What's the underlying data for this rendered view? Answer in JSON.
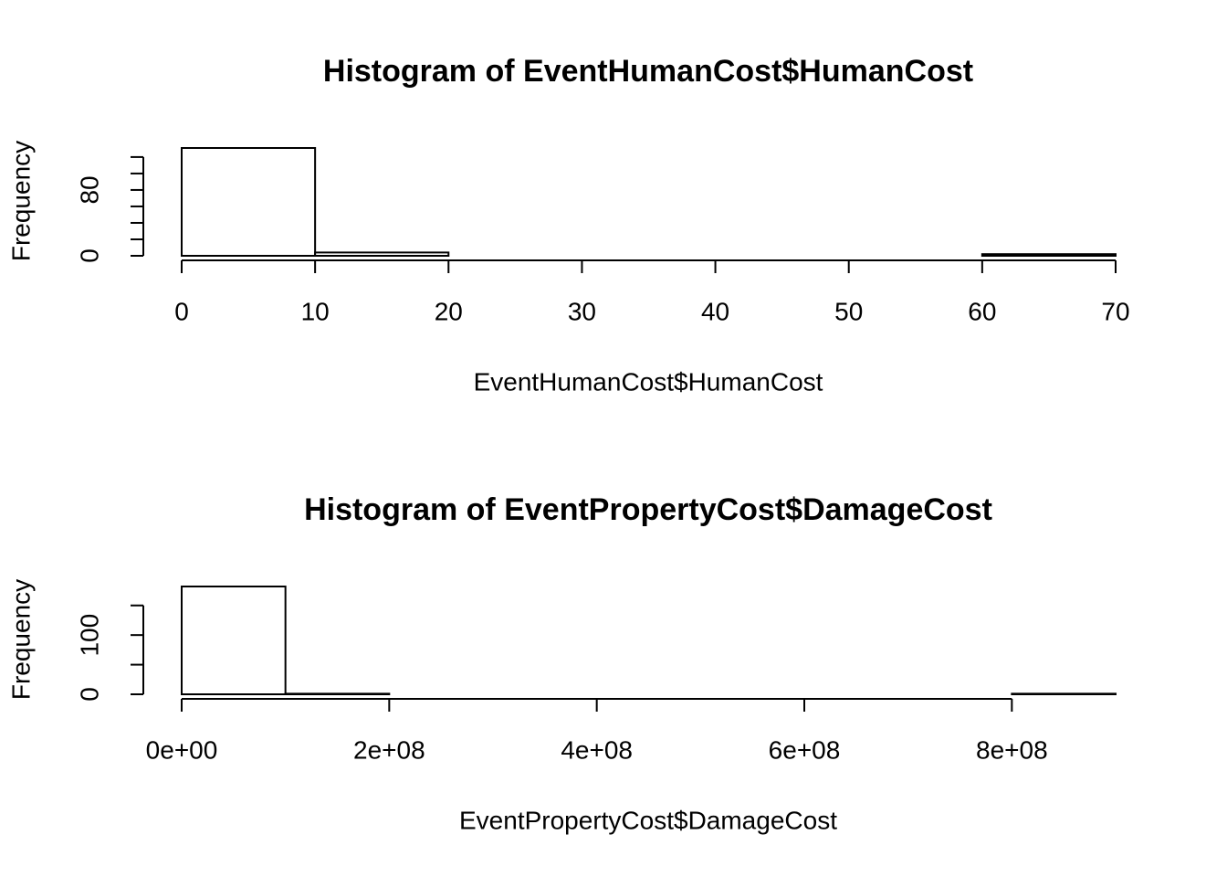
{
  "chart_data": [
    {
      "type": "histogram",
      "title": "Histogram of EventHumanCost$HumanCost",
      "x_label": "EventHumanCost$HumanCost",
      "y_label": "Frequency",
      "bins": [
        0,
        10,
        20,
        30,
        40,
        50,
        60,
        70
      ],
      "values": [
        131,
        4,
        0,
        0,
        0,
        0,
        2
      ],
      "xlim": [
        0,
        70
      ],
      "xticks": [
        0,
        10,
        20,
        30,
        40,
        50,
        60,
        70
      ],
      "ylim": [
        0,
        131
      ],
      "yticks": [
        0,
        80
      ],
      "minor_yticks": [
        20,
        40,
        60,
        100,
        120
      ],
      "color": "#ffffff"
    },
    {
      "type": "histogram",
      "title": "Histogram of EventPropertyCost$DamageCost",
      "x_label": "EventPropertyCost$DamageCost",
      "y_label": "Frequency",
      "bins": [
        0,
        100000000,
        200000000,
        300000000,
        400000000,
        500000000,
        600000000,
        700000000,
        800000000,
        900000000
      ],
      "values": [
        182,
        1,
        0,
        0,
        0,
        0,
        0,
        0,
        1
      ],
      "xlim": [
        0,
        900000000
      ],
      "xticks": [
        {
          "value": 0,
          "label": "0e+00"
        },
        {
          "value": 200000000,
          "label": "2e+08"
        },
        {
          "value": 400000000,
          "label": "4e+08"
        },
        {
          "value": 600000000,
          "label": "6e+08"
        },
        {
          "value": 800000000,
          "label": "8e+08"
        }
      ],
      "ylim": [
        0,
        182
      ],
      "yticks": [
        0,
        100
      ],
      "minor_yticks": [
        50,
        150
      ],
      "color": "#ffffff"
    }
  ]
}
